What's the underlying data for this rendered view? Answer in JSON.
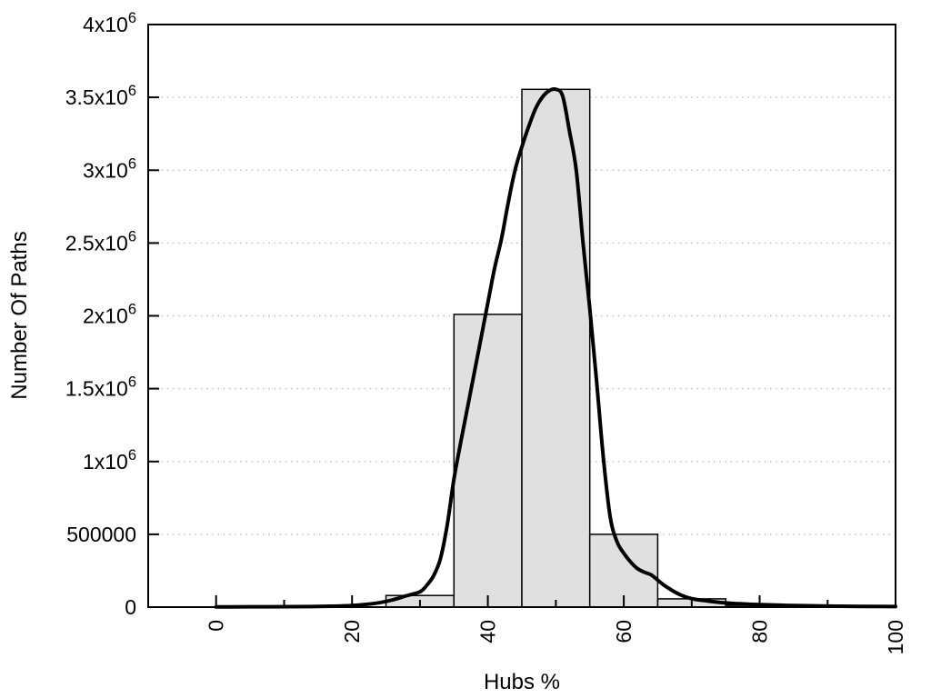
{
  "chart_data": {
    "type": "bar",
    "subtype": "histogram-with-fit-curve",
    "title": "",
    "xlabel": "Hubs %",
    "ylabel": "Number Of Paths",
    "xlim": [
      -10,
      100
    ],
    "ylim": [
      0,
      4000000
    ],
    "grid": "horizontal-dotted",
    "legend": "none",
    "x_major_ticks": [
      {
        "value": 0,
        "label": "0"
      },
      {
        "value": 20,
        "label": "20"
      },
      {
        "value": 40,
        "label": "40"
      },
      {
        "value": 60,
        "label": "60"
      },
      {
        "value": 80,
        "label": "80"
      },
      {
        "value": 100,
        "label": "100"
      }
    ],
    "x_minor_ticks": [
      10,
      30,
      50,
      70,
      90
    ],
    "x_tick_label_rotation_deg": -90,
    "y_ticks": [
      {
        "value": 0,
        "label": "0"
      },
      {
        "value": 500000,
        "label": "500000"
      },
      {
        "value": 1000000,
        "label": "1x10^6"
      },
      {
        "value": 1500000,
        "label": "1.5x10^6"
      },
      {
        "value": 2000000,
        "label": "2x10^6"
      },
      {
        "value": 2500000,
        "label": "2.5x10^6"
      },
      {
        "value": 3000000,
        "label": "3x10^6"
      },
      {
        "value": 3500000,
        "label": "3.5x10^6"
      },
      {
        "value": 4000000,
        "label": "4x10^6"
      }
    ],
    "bars": {
      "bin_width": 10,
      "bin_edges": [
        25,
        35,
        45,
        55,
        65,
        75,
        85
      ],
      "bin_centers": [
        30,
        40,
        50,
        60,
        70,
        80
      ],
      "values": [
        80000,
        2010000,
        3555000,
        500000,
        57000,
        12000
      ],
      "fill_color": "#e0e0e0",
      "stroke_color": "#000000"
    },
    "curve": {
      "name": "fit-curve",
      "color": "#000000",
      "stroke_width": 4,
      "peak": {
        "x": 50,
        "y": 3555000
      },
      "points": [
        [
          0,
          2000
        ],
        [
          8,
          2500
        ],
        [
          14,
          4000
        ],
        [
          18,
          7000
        ],
        [
          21,
          14000
        ],
        [
          24,
          30000
        ],
        [
          26,
          50000
        ],
        [
          28,
          78000
        ],
        [
          30,
          105000
        ],
        [
          31,
          150000
        ],
        [
          32,
          215000
        ],
        [
          33,
          330000
        ],
        [
          34,
          560000
        ],
        [
          35,
          880000
        ],
        [
          36,
          1130000
        ],
        [
          37,
          1370000
        ],
        [
          38,
          1610000
        ],
        [
          39,
          1850000
        ],
        [
          40,
          2090000
        ],
        [
          41,
          2330000
        ],
        [
          42,
          2530000
        ],
        [
          43,
          2780000
        ],
        [
          44,
          3000000
        ],
        [
          45,
          3160000
        ],
        [
          46,
          3300000
        ],
        [
          47,
          3420000
        ],
        [
          48,
          3500000
        ],
        [
          49,
          3545000
        ],
        [
          50,
          3555000
        ],
        [
          51,
          3510000
        ],
        [
          52,
          3270000
        ],
        [
          53,
          3000000
        ],
        [
          54,
          2500000
        ],
        [
          55,
          2050000
        ],
        [
          56,
          1550000
        ],
        [
          57,
          1020000
        ],
        [
          58,
          620000
        ],
        [
          59,
          450000
        ],
        [
          60,
          370000
        ],
        [
          61,
          310000
        ],
        [
          62,
          265000
        ],
        [
          63,
          240000
        ],
        [
          64,
          222000
        ],
        [
          65,
          185000
        ],
        [
          66,
          148000
        ],
        [
          67,
          118000
        ],
        [
          68,
          92000
        ],
        [
          69,
          72000
        ],
        [
          70,
          58000
        ],
        [
          71,
          50000
        ],
        [
          72,
          44000
        ],
        [
          73,
          38000
        ],
        [
          74,
          33000
        ],
        [
          75,
          29000
        ],
        [
          77,
          23000
        ],
        [
          80,
          17000
        ],
        [
          83,
          13000
        ],
        [
          86,
          10000
        ],
        [
          90,
          7000
        ],
        [
          95,
          5000
        ],
        [
          100,
          4000
        ]
      ]
    },
    "colors": {
      "background": "#ffffff",
      "border": "#000000",
      "gridline": "#c0c0c0",
      "text": "#000000"
    }
  }
}
